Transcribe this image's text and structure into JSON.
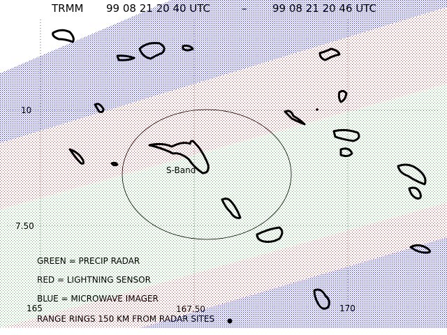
{
  "header": {
    "satellite": "TRMM",
    "start_time": "99 08 21 20 40 UTC",
    "separator": "–",
    "end_time": "99 08 21 20 46 UTC"
  },
  "axes": {
    "latitude_ticks": [
      "10",
      "7.50"
    ],
    "longitude_ticks": [
      "165",
      "167.50",
      "170"
    ]
  },
  "radar_site": {
    "label": "S-Band"
  },
  "legend": {
    "green": "GREEN = PRECIP RADAR",
    "red": "RED = LIGHTNING SENSOR",
    "blue": "BLUE = MICROWAVE IMAGER",
    "rings": "RANGE RINGS 150 KM FROM RADAR SITES"
  },
  "colors": {
    "precip_radar": "#33aa33",
    "lightning_sensor": "#dd2222",
    "microwave_imager": "#2222cc"
  }
}
